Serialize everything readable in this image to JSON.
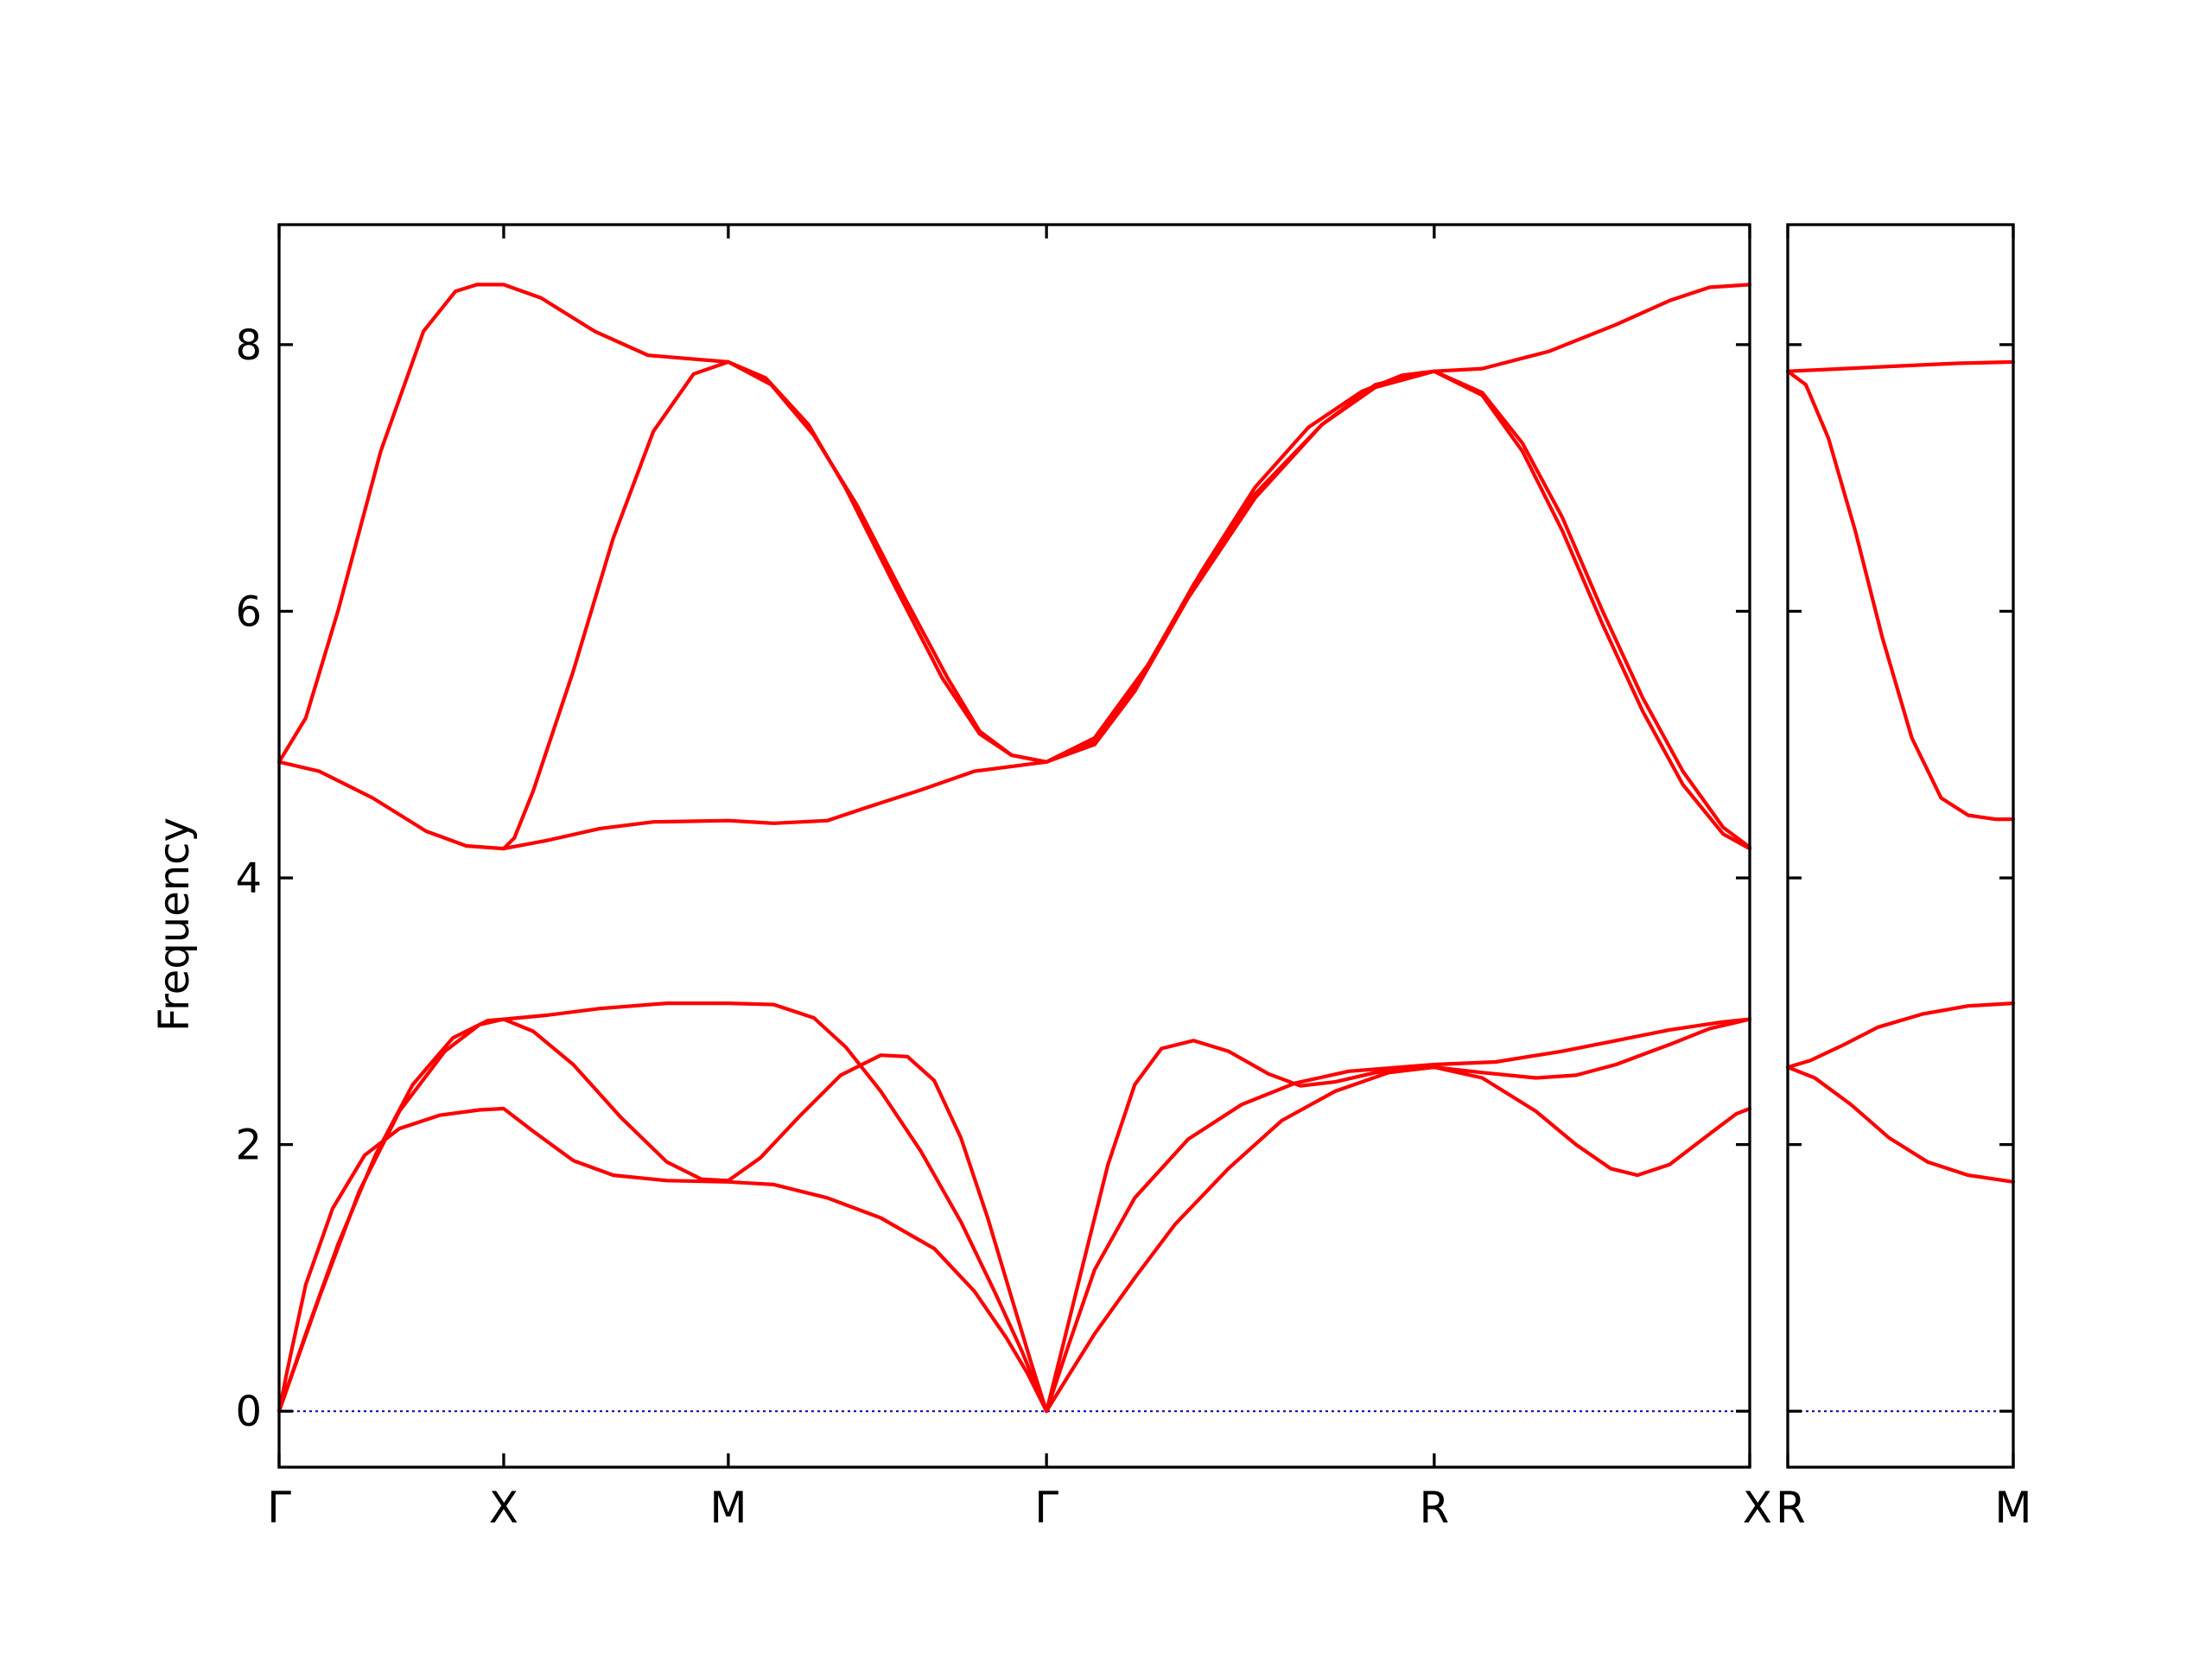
{
  "chart_data": {
    "type": "line",
    "ylabel": "Frequency",
    "ylim": [
      -0.42,
      8.9
    ],
    "yticks": [
      0,
      2,
      4,
      6,
      8
    ],
    "grid": false,
    "colors": {
      "bands": "#ff0000",
      "zero_line": "#0000aa"
    },
    "panels": [
      {
        "xlim": [
          0,
          5.5
        ],
        "ticks": [
          {
            "pos": 0,
            "label": "Γ"
          },
          {
            "pos": 0.84,
            "label": "X"
          },
          {
            "pos": 1.68,
            "label": "M"
          },
          {
            "pos": 2.87,
            "label": "Γ"
          },
          {
            "pos": 4.32,
            "label": "R"
          },
          {
            "pos": 5.5,
            "label": "X"
          }
        ],
        "bands": [
          [
            [
              0,
              4.87
            ],
            [
              0.1,
              5.2
            ],
            [
              0.22,
              6.0
            ],
            [
              0.38,
              7.2
            ],
            [
              0.54,
              8.1
            ],
            [
              0.66,
              8.4
            ],
            [
              0.74,
              8.45
            ],
            [
              0.84,
              8.45
            ],
            [
              0.98,
              8.35
            ],
            [
              1.18,
              8.1
            ],
            [
              1.38,
              7.92
            ],
            [
              1.68,
              7.87
            ],
            [
              1.84,
              7.7
            ],
            [
              2.0,
              7.32
            ],
            [
              2.16,
              6.8
            ],
            [
              2.34,
              6.1
            ],
            [
              2.5,
              5.5
            ],
            [
              2.62,
              5.1
            ],
            [
              2.74,
              4.92
            ],
            [
              2.87,
              4.87
            ],
            [
              3.05,
              5.05
            ],
            [
              3.25,
              5.6
            ],
            [
              3.45,
              6.3
            ],
            [
              3.65,
              6.93
            ],
            [
              3.85,
              7.38
            ],
            [
              4.05,
              7.65
            ],
            [
              4.2,
              7.77
            ],
            [
              4.32,
              7.8
            ],
            [
              4.5,
              7.82
            ],
            [
              4.75,
              7.95
            ],
            [
              5.0,
              8.15
            ],
            [
              5.2,
              8.33
            ],
            [
              5.35,
              8.43
            ],
            [
              5.5,
              8.45
            ]
          ],
          [
            [
              0,
              4.87
            ],
            [
              0.15,
              4.8
            ],
            [
              0.35,
              4.6
            ],
            [
              0.55,
              4.35
            ],
            [
              0.7,
              4.24
            ],
            [
              0.84,
              4.22
            ],
            [
              1.0,
              4.28
            ],
            [
              1.2,
              4.37
            ],
            [
              1.4,
              4.42
            ],
            [
              1.68,
              4.43
            ],
            [
              1.85,
              4.41
            ],
            [
              2.05,
              4.43
            ],
            [
              2.2,
              4.53
            ],
            [
              2.4,
              4.66
            ],
            [
              2.6,
              4.8
            ],
            [
              2.87,
              4.87
            ],
            [
              3.05,
              5.0
            ],
            [
              3.2,
              5.4
            ],
            [
              3.4,
              6.1
            ],
            [
              3.65,
              6.85
            ],
            [
              3.9,
              7.4
            ],
            [
              4.1,
              7.7
            ],
            [
              4.32,
              7.8
            ],
            [
              4.5,
              7.62
            ],
            [
              4.65,
              7.2
            ],
            [
              4.8,
              6.6
            ],
            [
              4.95,
              5.9
            ],
            [
              5.1,
              5.25
            ],
            [
              5.25,
              4.7
            ],
            [
              5.4,
              4.33
            ],
            [
              5.5,
              4.22
            ]
          ],
          [
            [
              0.84,
              4.22
            ],
            [
              0.88,
              4.3
            ],
            [
              0.95,
              4.65
            ],
            [
              1.1,
              5.55
            ],
            [
              1.25,
              6.55
            ],
            [
              1.4,
              7.35
            ],
            [
              1.55,
              7.78
            ],
            [
              1.68,
              7.87
            ],
            [
              1.82,
              7.75
            ],
            [
              1.98,
              7.4
            ],
            [
              2.12,
              6.92
            ],
            [
              2.3,
              6.2
            ],
            [
              2.48,
              5.5
            ],
            [
              2.62,
              5.08
            ],
            [
              2.74,
              4.92
            ],
            [
              2.87,
              4.87
            ],
            [
              3.05,
              5.02
            ],
            [
              3.22,
              5.48
            ],
            [
              3.42,
              6.2
            ],
            [
              3.65,
              6.88
            ],
            [
              3.9,
              7.4
            ],
            [
              4.1,
              7.68
            ],
            [
              4.32,
              7.8
            ],
            [
              4.5,
              7.64
            ],
            [
              4.65,
              7.26
            ],
            [
              4.8,
              6.7
            ],
            [
              4.95,
              6.0
            ],
            [
              5.1,
              5.35
            ],
            [
              5.25,
              4.8
            ],
            [
              5.4,
              4.38
            ],
            [
              5.5,
              4.23
            ]
          ],
          [
            [
              0,
              0
            ],
            [
              0.03,
              0.3
            ],
            [
              0.1,
              0.95
            ],
            [
              0.2,
              1.52
            ],
            [
              0.32,
              1.92
            ],
            [
              0.45,
              2.12
            ],
            [
              0.6,
              2.22
            ],
            [
              0.75,
              2.26
            ],
            [
              0.84,
              2.27
            ],
            [
              0.95,
              2.1
            ],
            [
              1.1,
              1.88
            ],
            [
              1.25,
              1.77
            ],
            [
              1.45,
              1.73
            ],
            [
              1.68,
              1.72
            ],
            [
              1.85,
              1.7
            ],
            [
              2.05,
              1.6
            ],
            [
              2.25,
              1.45
            ],
            [
              2.45,
              1.22
            ],
            [
              2.6,
              0.9
            ],
            [
              2.72,
              0.55
            ],
            [
              2.8,
              0.28
            ],
            [
              2.87,
              0
            ],
            [
              2.95,
              0.26
            ],
            [
              3.05,
              0.58
            ],
            [
              3.2,
              1.0
            ],
            [
              3.35,
              1.4
            ],
            [
              3.55,
              1.82
            ],
            [
              3.75,
              2.18
            ],
            [
              3.95,
              2.4
            ],
            [
              4.15,
              2.54
            ],
            [
              4.32,
              2.58
            ],
            [
              4.5,
              2.5
            ],
            [
              4.7,
              2.25
            ],
            [
              4.85,
              2.0
            ],
            [
              4.98,
              1.82
            ],
            [
              5.08,
              1.77
            ],
            [
              5.2,
              1.85
            ],
            [
              5.35,
              2.08
            ],
            [
              5.45,
              2.23
            ],
            [
              5.5,
              2.27
            ]
          ],
          [
            [
              0,
              0
            ],
            [
              0.1,
              0.58
            ],
            [
              0.22,
              1.25
            ],
            [
              0.36,
              1.92
            ],
            [
              0.5,
              2.45
            ],
            [
              0.65,
              2.8
            ],
            [
              0.78,
              2.93
            ],
            [
              0.84,
              2.94
            ],
            [
              0.95,
              2.85
            ],
            [
              1.1,
              2.6
            ],
            [
              1.28,
              2.2
            ],
            [
              1.45,
              1.87
            ],
            [
              1.58,
              1.74
            ],
            [
              1.68,
              1.73
            ],
            [
              1.8,
              1.9
            ],
            [
              1.95,
              2.22
            ],
            [
              2.1,
              2.52
            ],
            [
              2.25,
              2.67
            ],
            [
              2.35,
              2.66
            ],
            [
              2.45,
              2.48
            ],
            [
              2.55,
              2.05
            ],
            [
              2.65,
              1.45
            ],
            [
              2.75,
              0.78
            ],
            [
              2.81,
              0.38
            ],
            [
              2.87,
              0
            ],
            [
              2.92,
              0.4
            ],
            [
              3.0,
              1.05
            ],
            [
              3.1,
              1.85
            ],
            [
              3.2,
              2.45
            ],
            [
              3.3,
              2.72
            ],
            [
              3.42,
              2.78
            ],
            [
              3.55,
              2.7
            ],
            [
              3.7,
              2.53
            ],
            [
              3.82,
              2.44
            ],
            [
              3.95,
              2.47
            ],
            [
              4.1,
              2.54
            ],
            [
              4.32,
              2.58
            ],
            [
              4.5,
              2.54
            ],
            [
              4.7,
              2.5
            ],
            [
              4.85,
              2.52
            ],
            [
              5.0,
              2.6
            ],
            [
              5.2,
              2.75
            ],
            [
              5.35,
              2.87
            ],
            [
              5.5,
              2.94
            ]
          ],
          [
            [
              0,
              0
            ],
            [
              0.15,
              0.85
            ],
            [
              0.3,
              1.65
            ],
            [
              0.45,
              2.25
            ],
            [
              0.62,
              2.7
            ],
            [
              0.75,
              2.9
            ],
            [
              0.84,
              2.94
            ],
            [
              1.0,
              2.97
            ],
            [
              1.2,
              3.02
            ],
            [
              1.45,
              3.06
            ],
            [
              1.68,
              3.06
            ],
            [
              1.85,
              3.05
            ],
            [
              2.0,
              2.95
            ],
            [
              2.12,
              2.73
            ],
            [
              2.25,
              2.4
            ],
            [
              2.4,
              1.95
            ],
            [
              2.55,
              1.42
            ],
            [
              2.68,
              0.88
            ],
            [
              2.78,
              0.44
            ],
            [
              2.87,
              0
            ],
            [
              2.95,
              0.48
            ],
            [
              3.05,
              1.06
            ],
            [
              3.2,
              1.6
            ],
            [
              3.4,
              2.04
            ],
            [
              3.6,
              2.3
            ],
            [
              3.8,
              2.46
            ],
            [
              4.0,
              2.55
            ],
            [
              4.32,
              2.6
            ],
            [
              4.55,
              2.62
            ],
            [
              4.8,
              2.7
            ],
            [
              5.0,
              2.78
            ],
            [
              5.2,
              2.86
            ],
            [
              5.4,
              2.92
            ],
            [
              5.5,
              2.94
            ]
          ]
        ]
      },
      {
        "xlim": [
          0,
          1
        ],
        "ticks": [
          {
            "pos": 0,
            "label": "R"
          },
          {
            "pos": 1,
            "label": "M"
          }
        ],
        "bands": [
          [
            [
              0,
              7.8
            ],
            [
              0.25,
              7.82
            ],
            [
              0.5,
              7.84
            ],
            [
              0.75,
              7.86
            ],
            [
              1,
              7.87
            ]
          ],
          [
            [
              0,
              7.8
            ],
            [
              0.08,
              7.7
            ],
            [
              0.18,
              7.3
            ],
            [
              0.3,
              6.6
            ],
            [
              0.42,
              5.8
            ],
            [
              0.55,
              5.05
            ],
            [
              0.68,
              4.6
            ],
            [
              0.8,
              4.47
            ],
            [
              0.92,
              4.44
            ],
            [
              1,
              4.44
            ]
          ],
          [
            [
              0,
              2.58
            ],
            [
              0.1,
              2.63
            ],
            [
              0.25,
              2.75
            ],
            [
              0.4,
              2.88
            ],
            [
              0.6,
              2.98
            ],
            [
              0.8,
              3.04
            ],
            [
              1,
              3.06
            ]
          ],
          [
            [
              0,
              2.58
            ],
            [
              0.12,
              2.5
            ],
            [
              0.28,
              2.3
            ],
            [
              0.45,
              2.05
            ],
            [
              0.62,
              1.87
            ],
            [
              0.8,
              1.77
            ],
            [
              1,
              1.72
            ]
          ]
        ]
      }
    ]
  }
}
